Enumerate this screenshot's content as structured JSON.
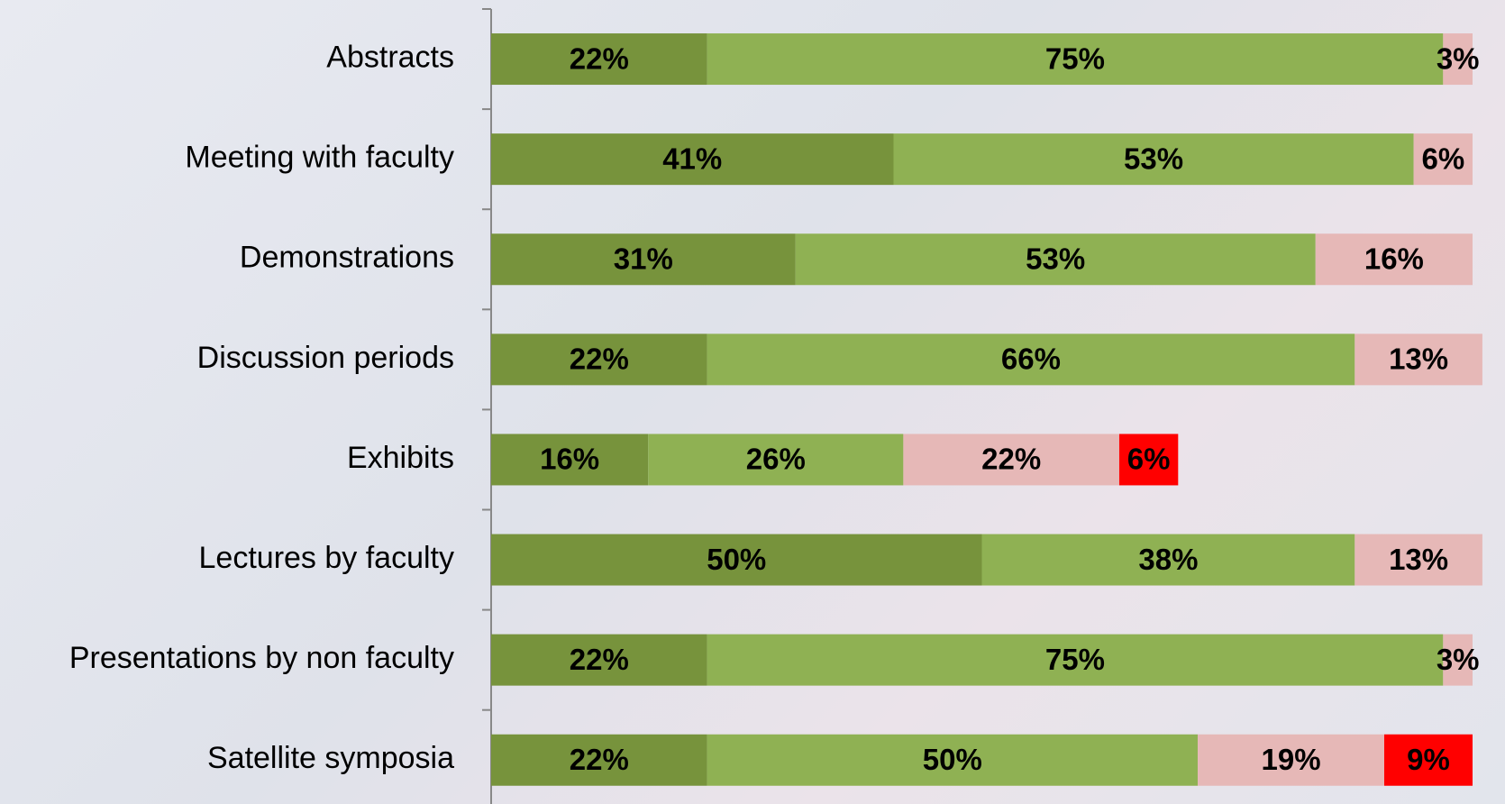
{
  "chart_data": {
    "type": "stacked-barh",
    "categories": [
      "Abstracts",
      "Meeting with faculty",
      "Demonstrations",
      "Discussion periods",
      "Exhibits",
      "Lectures by faculty",
      "Presentations by non faculty",
      "Satellite symposia"
    ],
    "series": [
      {
        "color": "#77933c",
        "values": [
          22,
          41,
          31,
          22,
          16,
          50,
          22,
          22
        ],
        "value_labels": [
          "22%",
          "41%",
          "31%",
          "22%",
          "16%",
          "50%",
          "22%",
          "22%"
        ]
      },
      {
        "color": "#8fb153",
        "values": [
          75,
          53,
          53,
          66,
          26,
          38,
          75,
          50
        ],
        "value_labels": [
          "75%",
          "53%",
          "53%",
          "66%",
          "26%",
          "38%",
          "75%",
          "50%"
        ]
      },
      {
        "color": "#e6b8b7",
        "values": [
          3,
          6,
          16,
          13,
          22,
          13,
          3,
          19
        ],
        "value_labels": [
          "3%",
          "6%",
          "16%",
          "13%",
          "22%",
          "13%",
          "3%",
          "19%"
        ]
      },
      {
        "color": "#ff0000",
        "values": [
          null,
          null,
          null,
          null,
          6,
          null,
          null,
          9
        ],
        "value_labels": [
          null,
          null,
          null,
          null,
          "6%",
          null,
          null,
          "9%"
        ]
      }
    ],
    "xlim": [
      0,
      100
    ]
  }
}
